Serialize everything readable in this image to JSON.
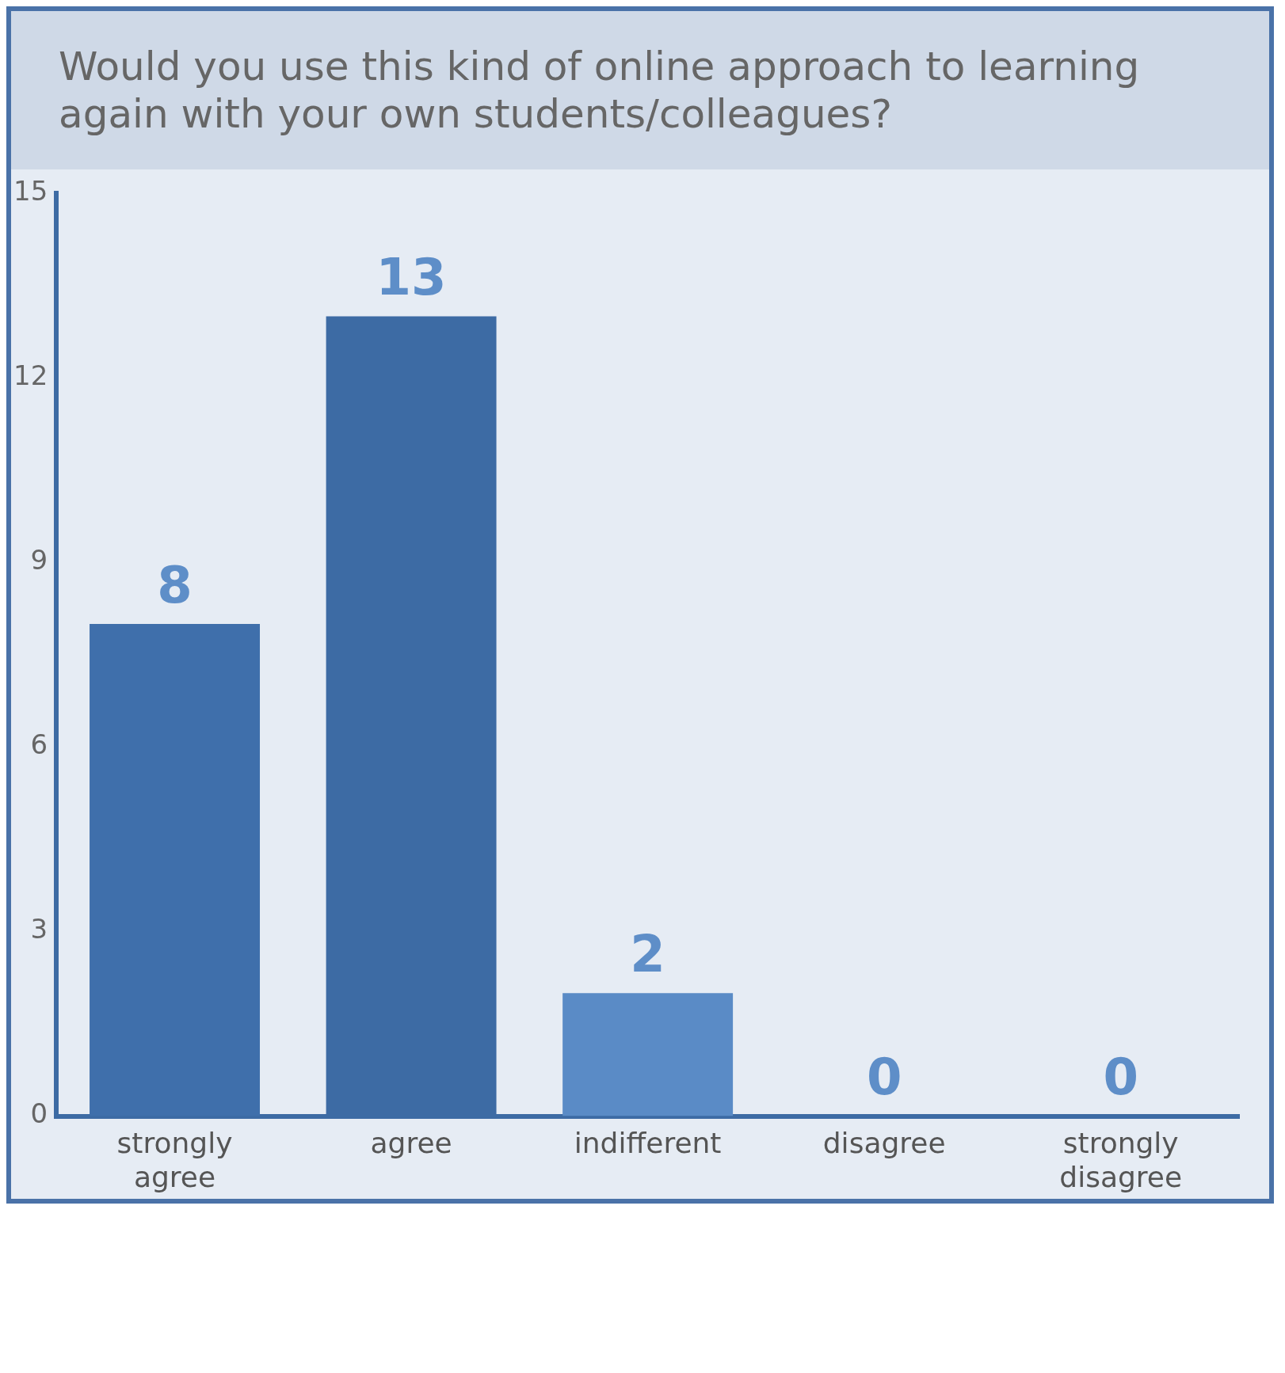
{
  "chart_data": {
    "type": "bar",
    "title": "Would you use this kind of online approach to learning again with your own students/colleagues?",
    "categories": [
      "strongly agree",
      "agree",
      "indifferent",
      "disagree",
      "strongly disagree"
    ],
    "values": [
      8,
      13,
      2,
      0,
      0
    ],
    "colors": [
      "#3f6fab",
      "#3d6ba4",
      "#5a8bc6",
      "#5a8bc6",
      "#5a8bc6"
    ],
    "ylim": [
      0,
      15
    ],
    "yticks": [
      0,
      3,
      6,
      9,
      12,
      15
    ],
    "grid": false,
    "legend": false,
    "data_labels": true
  }
}
